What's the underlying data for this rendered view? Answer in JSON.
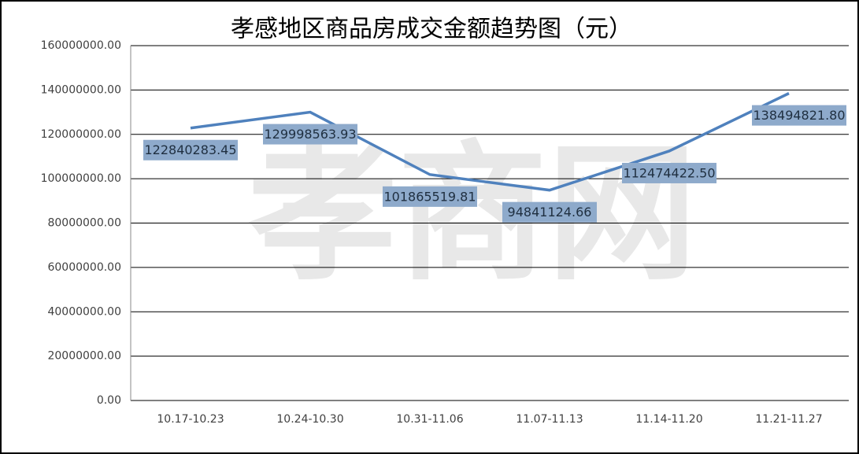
{
  "chart_data": {
    "type": "line",
    "title": "孝感地区商品房成交金额趋势图（元）",
    "watermark": "孝商网",
    "categories": [
      "10.17-10.23",
      "10.24-10.30",
      "10.31-11.06",
      "11.07-11.13",
      "11.14-11.20",
      "11.21-11.27"
    ],
    "values": [
      122840283.45,
      129998563.93,
      101865519.81,
      94841124.66,
      112474422.5,
      138494821.8
    ],
    "value_labels": [
      "122840283.45",
      "129998563.93",
      "101865519.81",
      "94841124.66",
      "112474422.50",
      "138494821.80"
    ],
    "color": "#4f81bd",
    "ylim": [
      0,
      160000000
    ],
    "yticks": [
      {
        "value": 0,
        "label": "0.00"
      },
      {
        "value": 20000000,
        "label": "20000000.00"
      },
      {
        "value": 40000000,
        "label": "40000000.00"
      },
      {
        "value": 60000000,
        "label": "60000000.00"
      },
      {
        "value": 80000000,
        "label": "80000000.00"
      },
      {
        "value": 100000000,
        "label": "100000000.00"
      },
      {
        "value": 120000000,
        "label": "120000000.00"
      },
      {
        "value": 140000000,
        "label": "140000000.00"
      },
      {
        "value": 160000000,
        "label": "160000000.00"
      }
    ],
    "grid": true
  }
}
